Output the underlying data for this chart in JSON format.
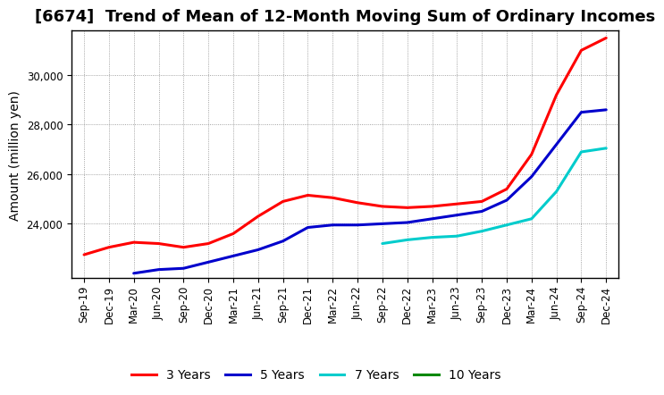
{
  "title": "[6674]  Trend of Mean of 12-Month Moving Sum of Ordinary Incomes",
  "ylabel": "Amount (million yen)",
  "background_color": "#ffffff",
  "grid_color": "#888888",
  "ylim": [
    21800,
    31800
  ],
  "yticks": [
    24000,
    26000,
    28000,
    30000
  ],
  "x_labels": [
    "Sep-19",
    "Dec-19",
    "Mar-20",
    "Jun-20",
    "Sep-20",
    "Dec-20",
    "Mar-21",
    "Jun-21",
    "Sep-21",
    "Dec-21",
    "Mar-22",
    "Jun-22",
    "Sep-22",
    "Dec-22",
    "Mar-23",
    "Jun-23",
    "Sep-23",
    "Dec-23",
    "Mar-24",
    "Jun-24",
    "Sep-24",
    "Dec-24"
  ],
  "series": {
    "3 Years": {
      "color": "#ff0000",
      "values": [
        22750,
        23050,
        23250,
        23200,
        23050,
        23200,
        23600,
        24300,
        24900,
        25150,
        25050,
        24850,
        24700,
        24650,
        24700,
        24800,
        24900,
        25400,
        26800,
        29200,
        31000,
        31500
      ]
    },
    "5 Years": {
      "color": "#0000cc",
      "values": [
        null,
        null,
        22000,
        22150,
        22200,
        22450,
        22700,
        22950,
        23300,
        23850,
        23950,
        23950,
        24000,
        24050,
        24200,
        24350,
        24500,
        24950,
        25900,
        27200,
        28500,
        28600
      ]
    },
    "7 Years": {
      "color": "#00cccc",
      "values": [
        null,
        null,
        null,
        null,
        null,
        null,
        null,
        null,
        null,
        null,
        null,
        null,
        23200,
        23350,
        23450,
        23500,
        23700,
        23950,
        24200,
        25300,
        26900,
        27050
      ]
    },
    "10 Years": {
      "color": "#008800",
      "values": [
        null,
        null,
        null,
        null,
        null,
        null,
        null,
        null,
        null,
        null,
        null,
        null,
        null,
        null,
        null,
        null,
        null,
        null,
        null,
        null,
        null,
        null
      ]
    }
  },
  "legend_order": [
    "3 Years",
    "5 Years",
    "7 Years",
    "10 Years"
  ],
  "title_fontsize": 13,
  "axis_fontsize": 10,
  "tick_fontsize": 8.5,
  "legend_fontsize": 10,
  "line_width": 2.2
}
